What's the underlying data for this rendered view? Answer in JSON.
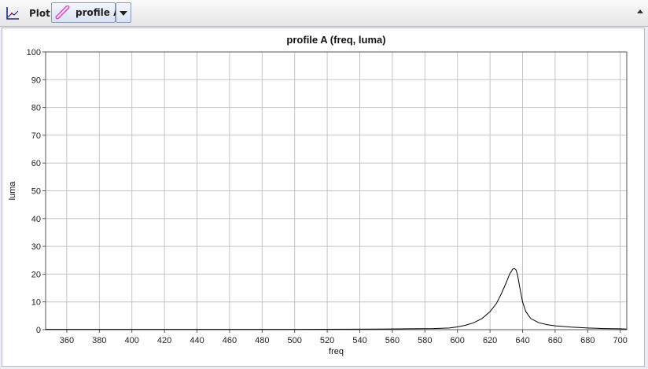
{
  "toolbar": {
    "plot_label": "Plot",
    "profile_label": "profile A",
    "plot_icon": "plot-axes-icon",
    "profile_icon": "profile-line-icon",
    "dropdown_icon": "chevron-down-icon",
    "collapse_icon": "chevron-up-icon"
  },
  "colors": {
    "accent": "#ff33cc",
    "background": "#ececf4",
    "grid": "#c0c0c0",
    "line": "#000000"
  },
  "chart_data": {
    "type": "line",
    "title": "profile A (freq, luma)",
    "xlabel": "freq",
    "ylabel": "luma",
    "xlim": [
      347,
      704
    ],
    "ylim": [
      0,
      100
    ],
    "xticks": [
      360,
      380,
      400,
      420,
      440,
      460,
      480,
      500,
      520,
      540,
      560,
      580,
      600,
      620,
      640,
      660,
      680,
      700
    ],
    "yticks": [
      0,
      10,
      20,
      30,
      40,
      50,
      60,
      70,
      80,
      90,
      100
    ],
    "grid": true,
    "series": [
      {
        "x": [
          347,
          400,
          500,
          550,
          570,
          585,
          595,
          600,
          605,
          610,
          615,
          620,
          624,
          627,
          630,
          632,
          634,
          635,
          636,
          637,
          638,
          640,
          642,
          645,
          650,
          655,
          660,
          670,
          680,
          690,
          700,
          704
        ],
        "y": [
          0.1,
          0.1,
          0.1,
          0.2,
          0.3,
          0.4,
          0.6,
          1.0,
          1.6,
          2.5,
          4.0,
          6.5,
          9.5,
          13.0,
          17.0,
          20.0,
          21.8,
          22.0,
          21.5,
          19.5,
          16.0,
          10.0,
          6.5,
          4.0,
          2.5,
          1.8,
          1.4,
          0.9,
          0.6,
          0.4,
          0.3,
          0.2
        ]
      }
    ]
  }
}
